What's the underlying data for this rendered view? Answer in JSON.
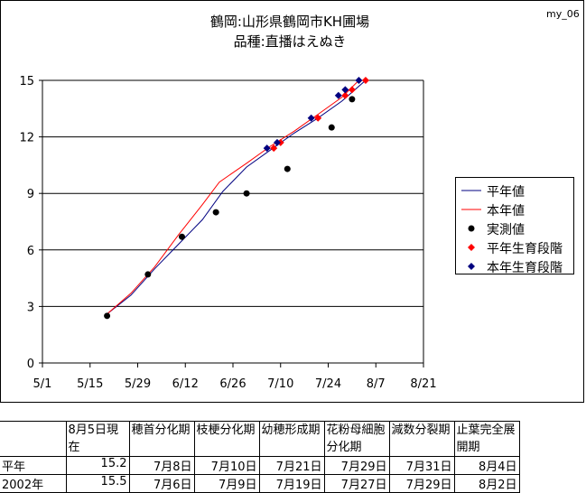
{
  "corner_id": "my_06",
  "title_line1": "鶴岡:山形県鶴岡市KH圃場",
  "title_line2": "品種:直播はえぬき",
  "chart_data": {
    "type": "line",
    "x_ticks": [
      "5/1",
      "5/15",
      "5/29",
      "6/12",
      "6/26",
      "7/10",
      "7/24",
      "8/7",
      "8/21"
    ],
    "y_ticks": [
      "0",
      "3",
      "6",
      "9",
      "12",
      "15"
    ],
    "ylim": [
      0,
      15
    ],
    "xlim": [
      "5/1",
      "8/21"
    ],
    "grid": "horizontal",
    "legend_position": "right",
    "series": [
      {
        "name": "平年値",
        "kind": "line",
        "color": "#000080",
        "points": [
          [
            "5/20",
            2.6
          ],
          [
            "5/27",
            3.6
          ],
          [
            "6/3",
            5.0
          ],
          [
            "6/10",
            6.3
          ],
          [
            "6/17",
            7.6
          ],
          [
            "6/23",
            9.1
          ],
          [
            "6/30",
            10.4
          ],
          [
            "7/7",
            11.3
          ],
          [
            "7/14",
            12.2
          ],
          [
            "7/21",
            13.0
          ],
          [
            "7/28",
            13.9
          ],
          [
            "8/4",
            15.0
          ]
        ]
      },
      {
        "name": "本年値",
        "kind": "line",
        "color": "#ff0000",
        "points": [
          [
            "5/20",
            2.6
          ],
          [
            "5/27",
            3.7
          ],
          [
            "6/3",
            5.1
          ],
          [
            "6/10",
            6.8
          ],
          [
            "6/17",
            8.4
          ],
          [
            "6/22",
            9.6
          ],
          [
            "6/30",
            10.6
          ],
          [
            "7/7",
            11.5
          ],
          [
            "7/14",
            12.3
          ],
          [
            "7/21",
            13.2
          ],
          [
            "7/28",
            14.1
          ],
          [
            "8/2",
            15.0
          ]
        ]
      },
      {
        "name": "実測値",
        "kind": "dots",
        "color": "#000000",
        "points": [
          [
            "5/20",
            2.5
          ],
          [
            "6/1",
            4.7
          ],
          [
            "6/11",
            6.7
          ],
          [
            "6/21",
            8.0
          ],
          [
            "6/30",
            9.0
          ],
          [
            "7/12",
            10.3
          ],
          [
            "7/25",
            12.5
          ],
          [
            "7/31",
            14.0
          ]
        ]
      },
      {
        "name": "平年生育段階",
        "kind": "diamonds",
        "color": "#ff0000",
        "points": [
          [
            "7/8",
            11.4
          ],
          [
            "7/10",
            11.7
          ],
          [
            "7/21",
            13.0
          ],
          [
            "7/29",
            14.2
          ],
          [
            "7/31",
            14.5
          ],
          [
            "8/4",
            15.0
          ]
        ]
      },
      {
        "name": "本年生育段階",
        "kind": "diamonds",
        "color": "#000080",
        "points": [
          [
            "7/6",
            11.4
          ],
          [
            "7/9",
            11.7
          ],
          [
            "7/19",
            13.0
          ],
          [
            "7/27",
            14.2
          ],
          [
            "7/29",
            14.5
          ],
          [
            "8/2",
            15.0
          ]
        ]
      }
    ]
  },
  "table": {
    "header": [
      "",
      "8月5日現在",
      "穂首分化期",
      "枝梗分化期",
      "幼穂形成期",
      "花粉母細胞分化期",
      "減数分裂期",
      "止葉完全展開期"
    ],
    "rows": [
      [
        "平年",
        "15.2",
        "7月8日",
        "7月10日",
        "7月21日",
        "7月29日",
        "7月31日",
        "8月4日"
      ],
      [
        "2002年",
        "15.5",
        "7月6日",
        "7月9日",
        "7月19日",
        "7月27日",
        "7月29日",
        "8月2日"
      ]
    ]
  }
}
